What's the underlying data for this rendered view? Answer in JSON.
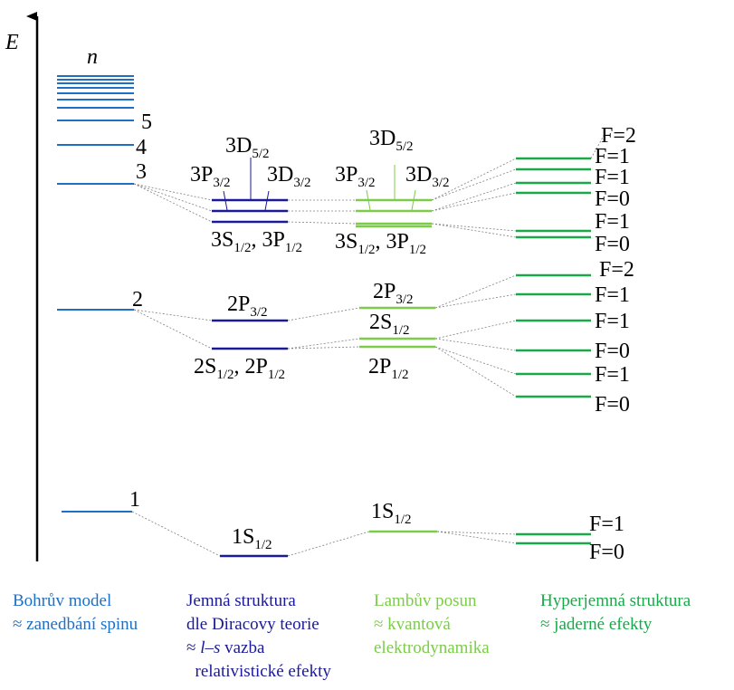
{
  "axis": {
    "energy_label": "E",
    "n_label": "n"
  },
  "colors": {
    "bohr": "#1f6fc6",
    "fine": "#1a1a99",
    "lamb": "#7ccc4a",
    "hyper": "#1aa84a",
    "connector": "#808080",
    "axis": "#000000"
  },
  "bohr_labels": [
    "5",
    "4",
    "3",
    "2",
    "1"
  ],
  "fine_labels": {
    "d52": {
      "main": "3D",
      "sub": "5/2"
    },
    "p32": {
      "main": "3P",
      "sub": "3/2"
    },
    "d32": {
      "main": "3D",
      "sub": "3/2"
    },
    "s12_3": {
      "a": "3S",
      "asub": "1/2",
      "sep": ", ",
      "b": "3P",
      "bsub": "1/2"
    },
    "p32_2": {
      "main": "2P",
      "sub": "3/2"
    },
    "s12_2": {
      "a": "2S",
      "asub": "1/2",
      "sep": ", ",
      "b": "2P",
      "bsub": "1/2"
    },
    "s12_1": {
      "main": "1S",
      "sub": "1/2"
    }
  },
  "lamb_labels": {
    "d52": {
      "main": "3D",
      "sub": "5/2"
    },
    "p32": {
      "main": "3P",
      "sub": "3/2"
    },
    "d32": {
      "main": "3D",
      "sub": "3/2"
    },
    "s12_3": {
      "a": "3S",
      "asub": "1/2",
      "sep": ", ",
      "b": "3P",
      "bsub": "1/2"
    },
    "p32_2": {
      "main": "2P",
      "sub": "3/2"
    },
    "s12_2": {
      "main": "2S",
      "sub": "1/2"
    },
    "p12_2": {
      "main": "2P",
      "sub": "1/2"
    },
    "s12_1": {
      "main": "1S",
      "sub": "1/2"
    }
  },
  "hyperfine_labels": {
    "n3": [
      "F=2",
      "F=1",
      "F=1",
      "F=0",
      "F=1",
      "F=0"
    ],
    "n2": [
      "F=2",
      "F=1",
      "F=1",
      "F=0",
      "F=1",
      "F=0"
    ],
    "n1": [
      "F=1",
      "F=0"
    ]
  },
  "captions": {
    "bohr": [
      "Bohrův model",
      "≈ zanedbání spinu"
    ],
    "fine": [
      "Jemná struktura",
      "dle Diracovy teorie",
      "≈ ",
      "l–s",
      " vazba",
      "  relativistické efekty"
    ],
    "lamb": [
      "Lambův posun",
      "≈ kvantová",
      "elektrodynamika"
    ],
    "hyper": [
      "Hyperjemná struktura",
      "≈ jaderné efekty"
    ]
  }
}
